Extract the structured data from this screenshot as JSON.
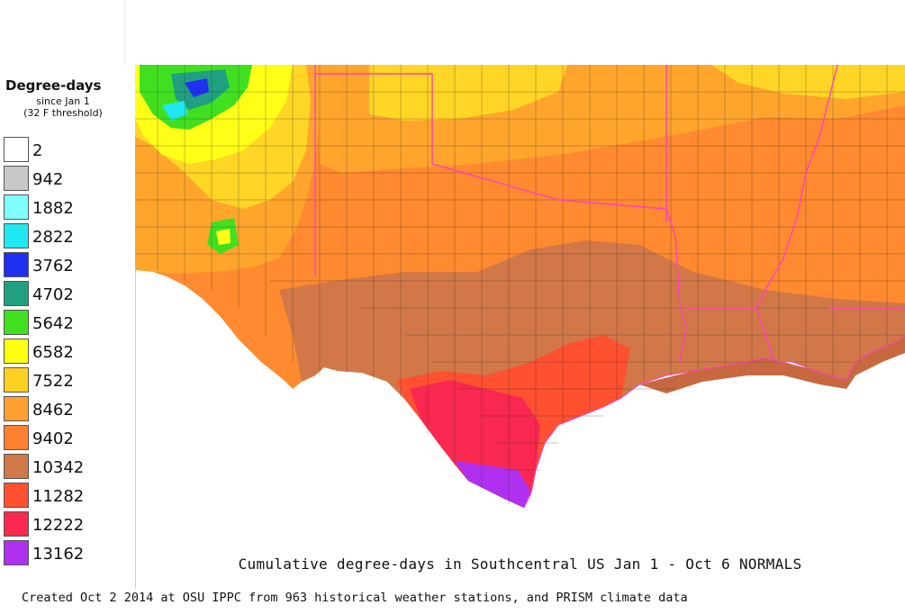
{
  "legend": {
    "title": "Degree-days",
    "subtitle_line1": "since Jan 1",
    "subtitle_line2": "(32 F threshold)",
    "items": [
      {
        "label": "2",
        "color": "#ffffff"
      },
      {
        "label": "942",
        "color": "#c8c8c8"
      },
      {
        "label": "1882",
        "color": "#80ffff"
      },
      {
        "label": "2822",
        "color": "#20e8f0"
      },
      {
        "label": "3762",
        "color": "#2030f0"
      },
      {
        "label": "4702",
        "color": "#20a080"
      },
      {
        "label": "5642",
        "color": "#40e020"
      },
      {
        "label": "6582",
        "color": "#ffff10"
      },
      {
        "label": "7522",
        "color": "#ffd020"
      },
      {
        "label": "8462",
        "color": "#ffa030"
      },
      {
        "label": "9402",
        "color": "#ff8030"
      },
      {
        "label": "10342",
        "color": "#d07848"
      },
      {
        "label": "11282",
        "color": "#ff5030"
      },
      {
        "label": "12222",
        "color": "#f82850"
      },
      {
        "label": "13162",
        "color": "#b030f0"
      }
    ]
  },
  "map": {
    "title": "Cumulative degree-days in Southcentral US Jan 1 - Oct 6 NORMALS",
    "state_border_color": "#ff40c0"
  },
  "credit": "Created Oct 2 2014 at OSU IPPC from 963 historical weather stations, and PRISM climate data"
}
